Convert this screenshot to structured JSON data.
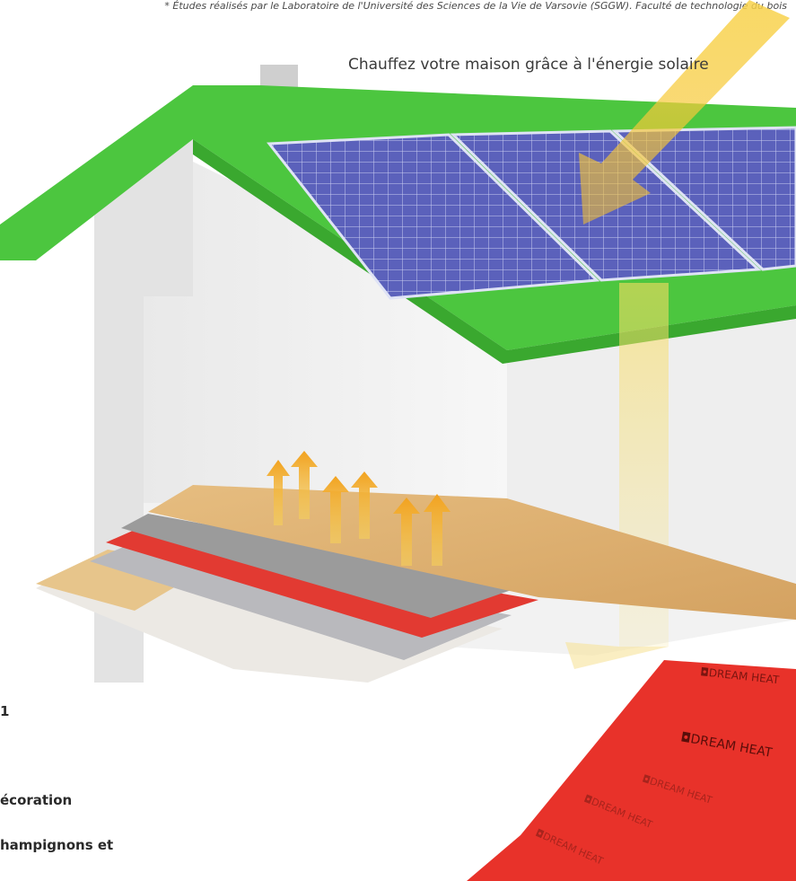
{
  "footnote": "* Études réalisés par le Laboratoire de l'Université des Sciences de la Vie de Varsovie (SGGW). Faculté de technologie du bois",
  "headline": "Chauffez votre maison grâce à l'énergie solaire",
  "bullets": [
    "1",
    "écoration",
    "hampignons et"
  ],
  "film_brand": "DREAM HEAT",
  "colors": {
    "roof_green": "#4cc63f",
    "film_red": "#e8322a",
    "sun_yellow": "#f7c531",
    "panel_blue": "#5a5fb8",
    "wood": "#d8ad70"
  }
}
